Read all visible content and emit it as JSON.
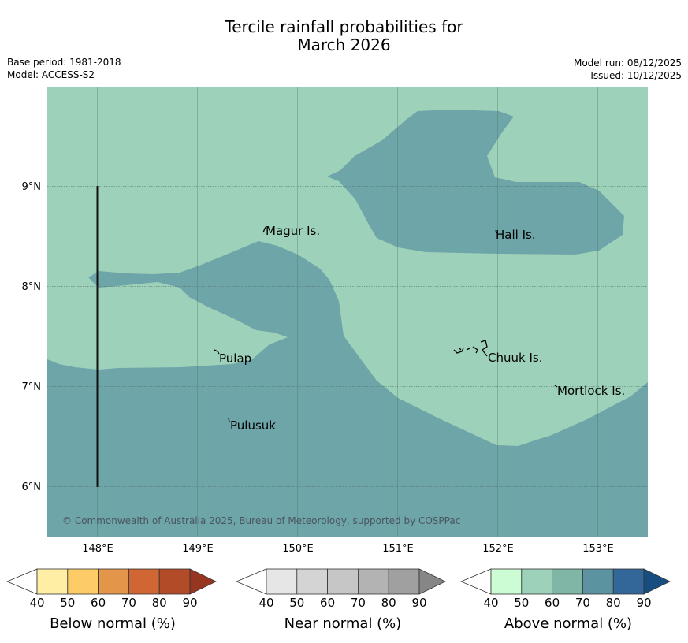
{
  "title_line1": "Tercile rainfall probabilities for",
  "title_line2": "March 2026",
  "base_period": "Base period: 1981-2018",
  "model": "Model: ACCESS-S2",
  "model_run": "Model run: 08/12/2025",
  "issued": "Issued: 10/12/2025",
  "copyright": "© Commonwealth of Australia 2025, Bureau of Meteorology, supported by COSPPac",
  "colors": {
    "above_50_60": "#9dd1ba",
    "above_70_80": "#6ea5a8",
    "grid": "#4a6a5c"
  },
  "axes": {
    "lon_ticks": [
      "148°E",
      "149°E",
      "150°E",
      "151°E",
      "152°E",
      "153°E"
    ],
    "lat_ticks": [
      "9°N",
      "8°N",
      "7°N",
      "6°N"
    ]
  },
  "places": [
    "Magur Is.",
    "Hall Is.",
    "Pulap",
    "Chuuk Is.",
    "Mortlock Is.",
    "Pulusuk"
  ],
  "legends": [
    {
      "label": "Below normal (%)",
      "colors": [
        "#ffffff",
        "#ffeea3",
        "#fdcc66",
        "#e39649",
        "#cf6633",
        "#b24b28",
        "#973620"
      ]
    },
    {
      "label": "Near normal (%)",
      "colors": [
        "#ffffff",
        "#e6e6e6",
        "#d4d4d4",
        "#c6c6c6",
        "#b3b3b3",
        "#a0a0a0",
        "#868686"
      ]
    },
    {
      "label": "Above normal (%)",
      "colors": [
        "#ffffff",
        "#ccfcd3",
        "#9dd1ba",
        "#7fb6a6",
        "#5b93a0",
        "#336699",
        "#184e7f"
      ]
    }
  ],
  "legend_ticks": [
    "40",
    "50",
    "60",
    "70",
    "80",
    "90"
  ]
}
